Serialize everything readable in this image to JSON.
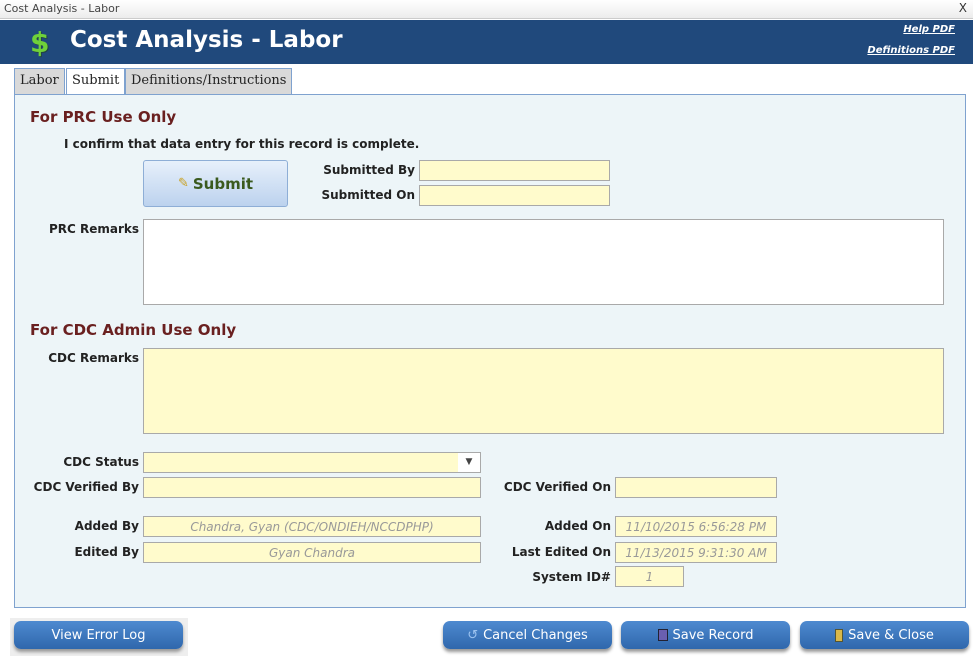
{
  "window": {
    "title": "Cost Analysis - Labor",
    "close": "X"
  },
  "header": {
    "icon": "dollar-icon",
    "symbol": "$",
    "title": "Cost Analysis - Labor",
    "help_link": "Help PDF",
    "definitions_link": "Definitions PDF"
  },
  "tabs": [
    {
      "label": "Labor"
    },
    {
      "label": "Submit",
      "active": true
    },
    {
      "label": "Definitions/Instructions"
    }
  ],
  "prc": {
    "heading": "For PRC Use Only",
    "confirm_text": "I confirm that data entry for this record is complete.",
    "submit_label": "Submit",
    "submitted_by_label": "Submitted By",
    "submitted_by": "",
    "submitted_on_label": "Submitted On",
    "submitted_on": "",
    "remarks_label": "PRC Remarks",
    "remarks": ""
  },
  "cdc": {
    "heading": "For CDC Admin Use Only",
    "remarks_label": "CDC Remarks",
    "remarks": "",
    "status_label": "CDC Status",
    "status": "",
    "verified_by_label": "CDC Verified By",
    "verified_by": "",
    "verified_on_label": "CDC Verified On",
    "verified_on": ""
  },
  "audit": {
    "added_by_label": "Added By",
    "added_by": "Chandra, Gyan (CDC/ONDIEH/NCCDPHP)",
    "edited_by_label": "Edited By",
    "edited_by": "Gyan Chandra",
    "added_on_label": "Added On",
    "added_on": "11/10/2015 6:56:28 PM",
    "last_edited_label": "Last Edited On",
    "last_edited": "11/13/2015 9:31:30 AM",
    "system_id_label": "System ID#",
    "system_id": "1"
  },
  "buttons": {
    "error_log": "View Error Log",
    "cancel": "Cancel Changes",
    "save": "Save Record",
    "save_close": "Save & Close"
  }
}
